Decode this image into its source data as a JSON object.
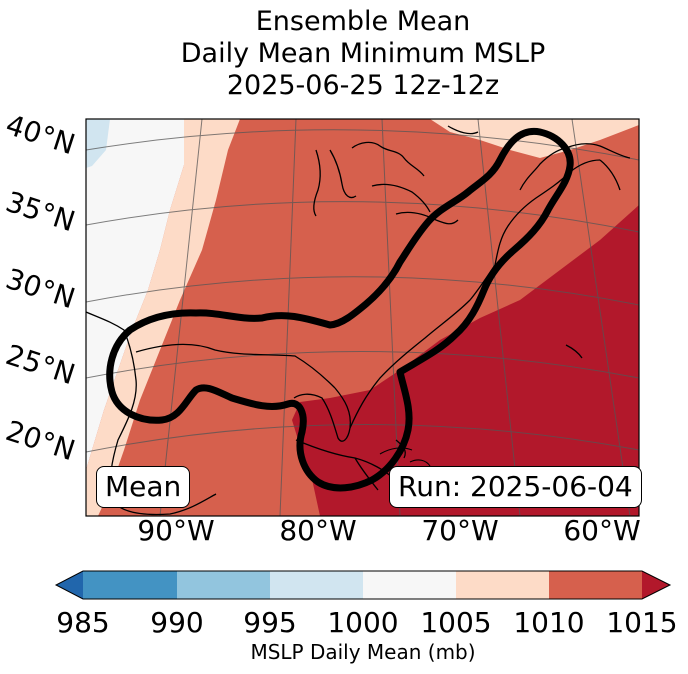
{
  "title": {
    "line1": "Ensemble Mean",
    "line2": "Daily Mean Minimum MSLP",
    "line3": "2025-06-25 12z-12z"
  },
  "map": {
    "lat_labels": [
      "40°N",
      "35°N",
      "30°N",
      "25°N",
      "20°N"
    ],
    "lon_labels": [
      "90°W",
      "80°W",
      "70°W",
      "60°W"
    ],
    "inset_left": "Mean",
    "inset_right": "Run: 2025-06-04",
    "contour_color": "#000000"
  },
  "colorbar": {
    "label": "MSLP Daily Mean (mb)",
    "ticks": [
      "985",
      "990",
      "995",
      "1000",
      "1005",
      "1010",
      "1015"
    ],
    "extend": "both",
    "bins": [
      {
        "range": "<985",
        "color": "#2166ac"
      },
      {
        "range": "985-990",
        "color": "#4393c3"
      },
      {
        "range": "990-995",
        "color": "#92c5de"
      },
      {
        "range": "995-1000",
        "color": "#d1e5f0"
      },
      {
        "range": "1000-1005",
        "color": "#f7f7f7"
      },
      {
        "range": "1005-1010",
        "color": "#fddbc7"
      },
      {
        "range": "1010-1015",
        "color": "#d6604d"
      },
      {
        "range": ">1015",
        "color": "#b2182b"
      }
    ]
  }
}
